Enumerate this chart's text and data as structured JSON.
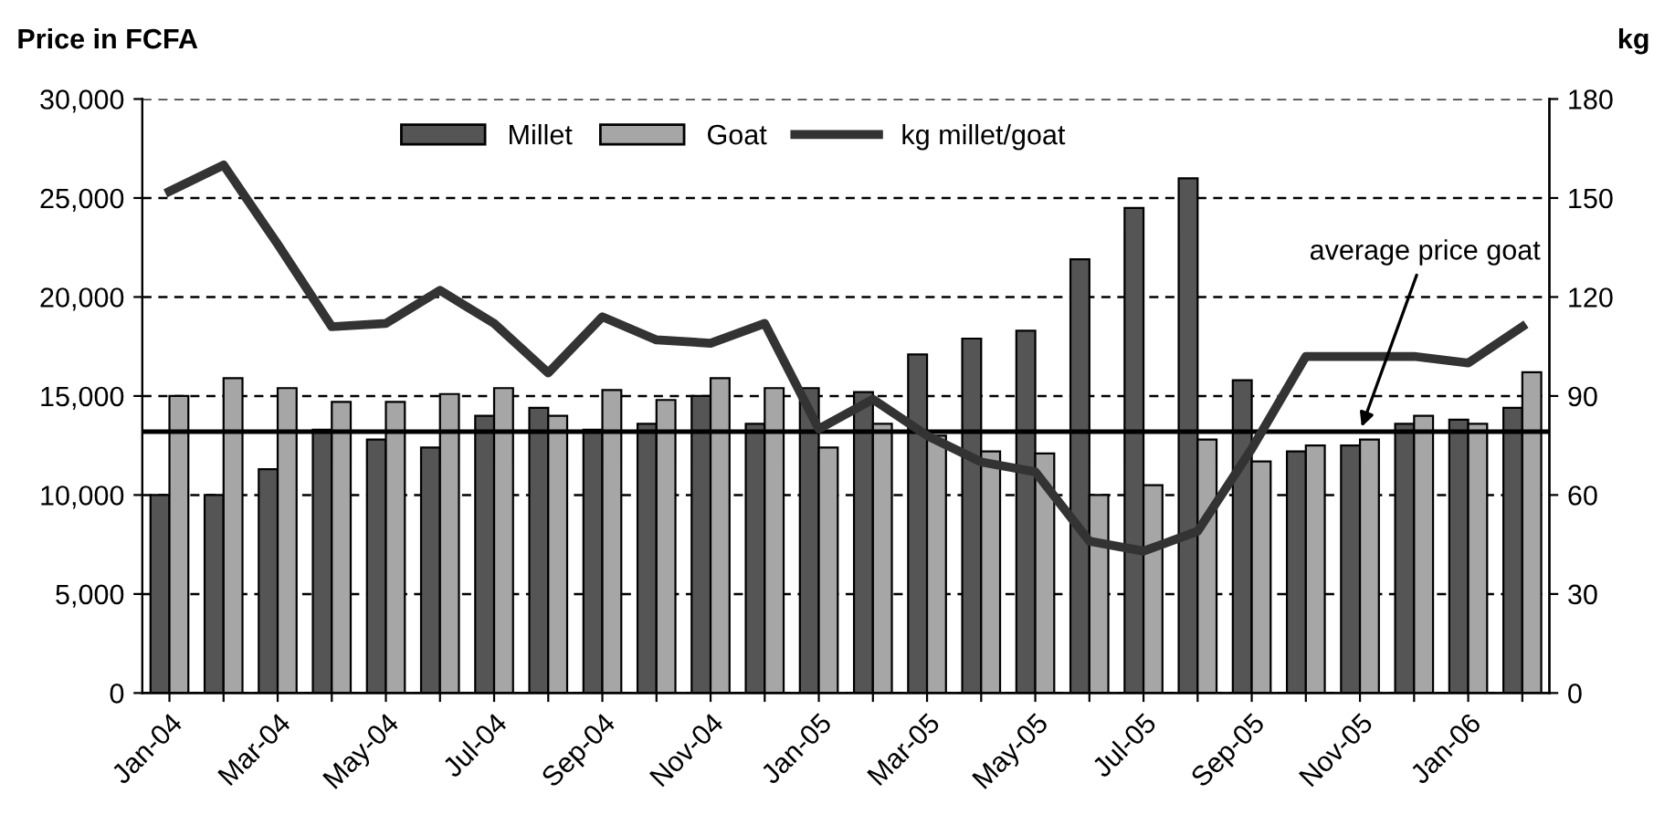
{
  "chart_data": {
    "type": "bar",
    "ylabel": "Price in FCFA",
    "y2label": "kg",
    "categories": [
      "Jan-04",
      null,
      "Mar-04",
      null,
      "May-04",
      null,
      "Jul-04",
      null,
      "Sep-04",
      null,
      "Nov-04",
      null,
      "Jan-05",
      null,
      "Mar-05",
      null,
      "May-05",
      null,
      "Jul-05",
      null,
      "Sep-05",
      null,
      "Nov-05",
      null,
      "Jan-06",
      null
    ],
    "series": [
      {
        "name": "Millet",
        "color": "#555555",
        "values": [
          10000,
          10000,
          11300,
          13300,
          12800,
          12400,
          14000,
          14400,
          13300,
          13600,
          15000,
          13600,
          15400,
          15200,
          17100,
          17900,
          18300,
          21900,
          24500,
          26000,
          15800,
          12200,
          12500,
          13600,
          13800,
          14400
        ]
      },
      {
        "name": "Goat",
        "color": "#a6a6a6",
        "values": [
          15000,
          15900,
          15400,
          14700,
          14700,
          15100,
          15400,
          14000,
          15300,
          14800,
          15900,
          15400,
          12400,
          13600,
          13000,
          12200,
          12100,
          10000,
          10500,
          12800,
          11700,
          12500,
          12800,
          14000,
          13600,
          16200
        ]
      },
      {
        "name": "kg millet/goat",
        "type": "line",
        "axis": "y2",
        "color": "#333333",
        "values": [
          152,
          160,
          136,
          111,
          112,
          122,
          112,
          97,
          114,
          107,
          106,
          112,
          80,
          89,
          78,
          70,
          67,
          46,
          43,
          49,
          74,
          102,
          102,
          102,
          100,
          111
        ]
      }
    ],
    "ylim": [
      0,
      30000
    ],
    "yticks": [
      0,
      {
        "value": 5000,
        "label": "5,000"
      },
      {
        "value": 10000,
        "label": "10,000"
      },
      {
        "value": 15000,
        "label": "15,000"
      },
      {
        "value": 20000,
        "label": "20,000"
      },
      {
        "value": 25000,
        "label": "25,000"
      },
      {
        "value": 30000,
        "label": "30,000"
      }
    ],
    "y2lim": [
      0,
      180
    ],
    "y2ticks": [
      0,
      30,
      60,
      90,
      120,
      150,
      180
    ],
    "ref_lines": [
      {
        "axis": "y",
        "value": 13200,
        "color": "#000000",
        "line_style": "solid"
      }
    ],
    "annotations": [
      {
        "text": "average price goat",
        "x": "Nov-05",
        "y": 13200
      }
    ],
    "grid": "y",
    "legend": "top",
    "marker": "none",
    "line_style": "solid"
  }
}
